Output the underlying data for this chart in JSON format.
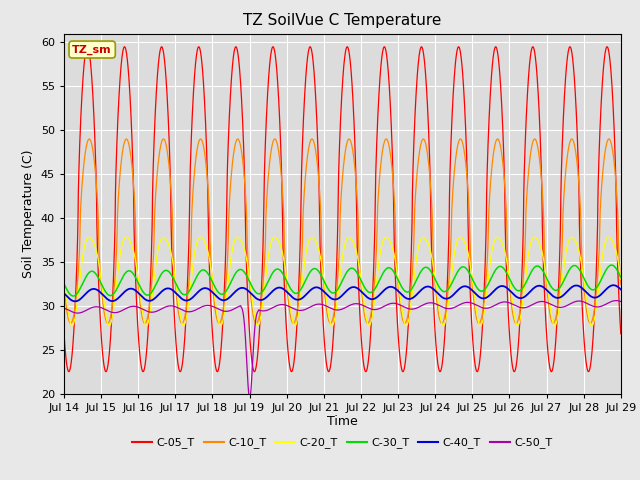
{
  "title": "TZ SoilVue C Temperature",
  "ylabel": "Soil Temperature (C)",
  "xlabel": "Time",
  "annotation_label": "TZ_sm",
  "ylim": [
    20,
    61
  ],
  "yticks": [
    20,
    25,
    30,
    35,
    40,
    45,
    50,
    55,
    60
  ],
  "x_tick_labels": [
    "Jul 14",
    "Jul 15",
    "Jul 16",
    "Jul 17",
    "Jul 18",
    "Jul 19",
    "Jul 20",
    "Jul 21",
    "Jul 22",
    "Jul 23",
    "Jul 24",
    "Jul 25",
    "Jul 26",
    "Jul 27",
    "Jul 28",
    "Jul 29"
  ],
  "num_days": 15,
  "colors": {
    "C-05_T": "#ff0000",
    "C-10_T": "#ff8800",
    "C-20_T": "#ffff00",
    "C-30_T": "#00dd00",
    "C-40_T": "#0000dd",
    "C-50_T": "#aa00aa"
  },
  "background_color": "#dcdcdc",
  "fig_background": "#e8e8e8",
  "title_fontsize": 11,
  "axis_label_fontsize": 9,
  "legend_fontsize": 8,
  "grid_color": "#ffffff",
  "annotation_bg": "#ffffcc",
  "annotation_border": "#999900",
  "annotation_text_color": "#cc0000"
}
